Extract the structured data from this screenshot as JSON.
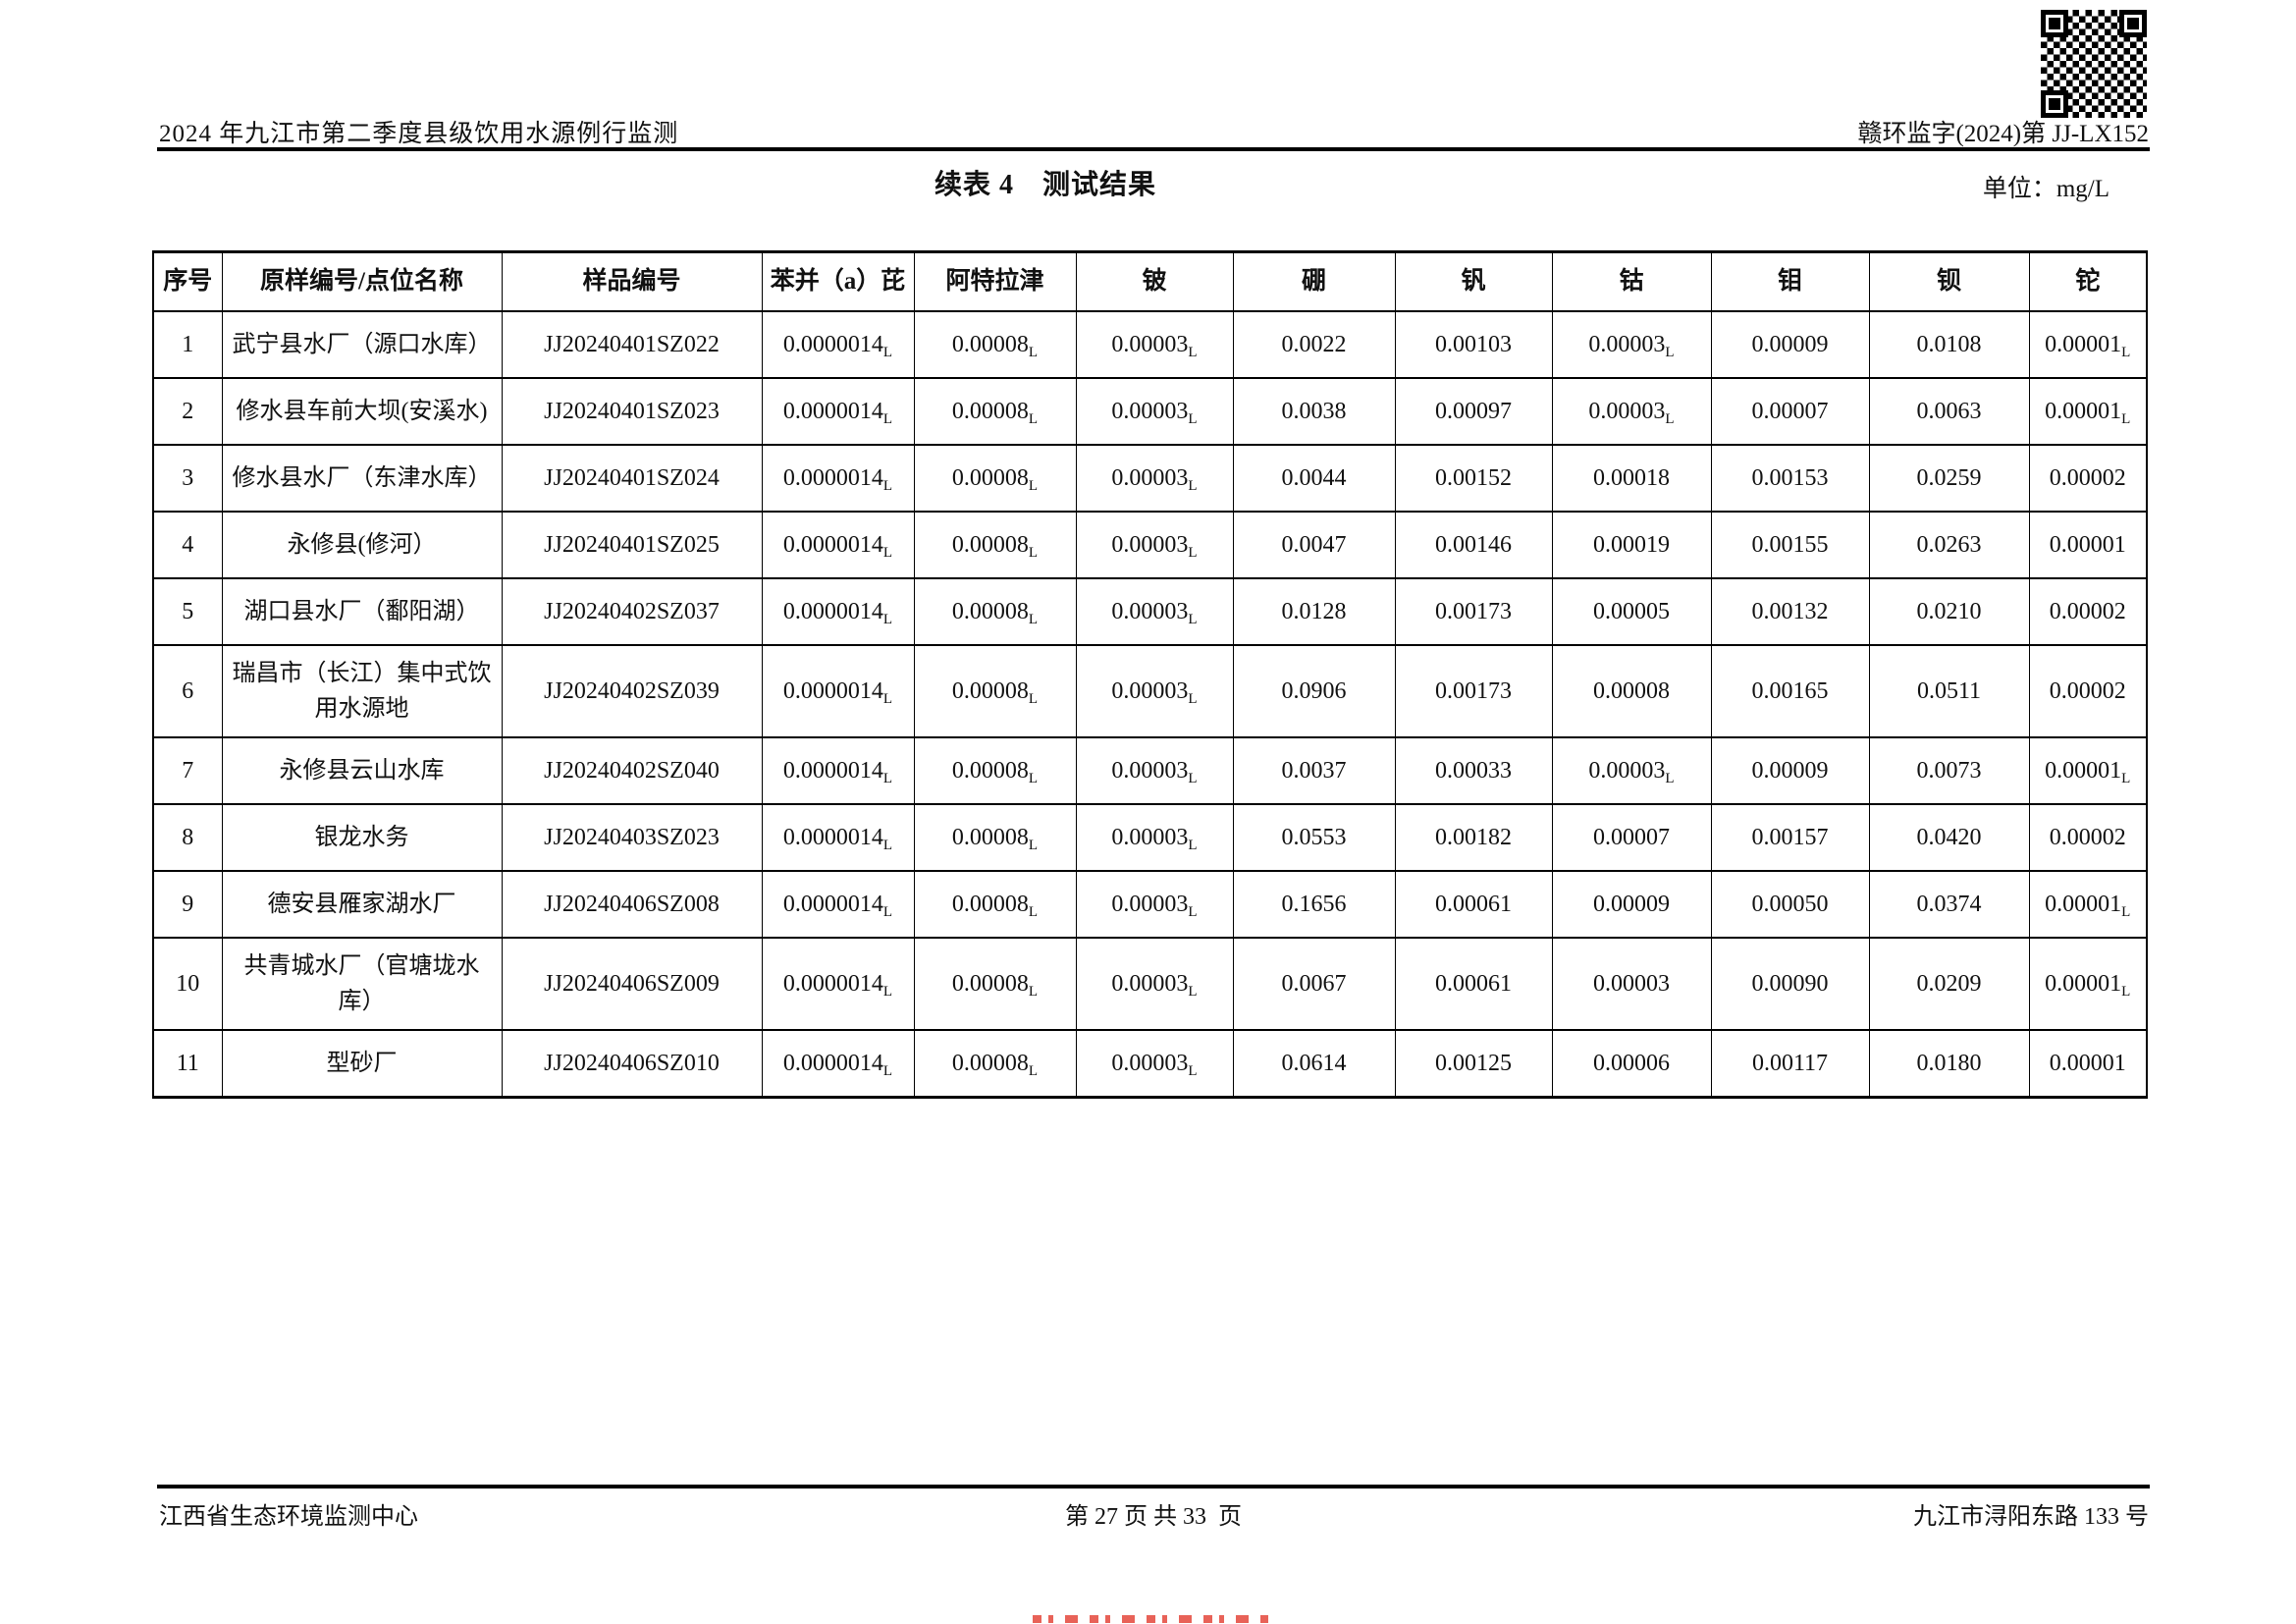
{
  "header": {
    "doc_title": "2024 年九江市第二季度县级饮用水源例行监测",
    "doc_number": "赣环监字(2024)第 JJ-LX152"
  },
  "title": "续表 4　测试结果",
  "unit_label": "单位：mg/L",
  "table": {
    "columns": [
      "序号",
      "原样编号/点位名称",
      "样品编号",
      "苯并（a）芘",
      "阿特拉津",
      "铍",
      "硼",
      "钒",
      "钴",
      "钼",
      "钡",
      "铊"
    ],
    "below_detection_suffix": "L",
    "rows": [
      [
        "1",
        "武宁县水厂（源口水库）",
        "JJ20240401SZ022",
        "0.0000014L",
        "0.00008L",
        "0.00003L",
        "0.0022",
        "0.00103",
        "0.00003L",
        "0.00009",
        "0.0108",
        "0.00001L"
      ],
      [
        "2",
        "修水县车前大坝(安溪水)",
        "JJ20240401SZ023",
        "0.0000014L",
        "0.00008L",
        "0.00003L",
        "0.0038",
        "0.00097",
        "0.00003L",
        "0.00007",
        "0.0063",
        "0.00001L"
      ],
      [
        "3",
        "修水县水厂（东津水库）",
        "JJ20240401SZ024",
        "0.0000014L",
        "0.00008L",
        "0.00003L",
        "0.0044",
        "0.00152",
        "0.00018",
        "0.00153",
        "0.0259",
        "0.00002"
      ],
      [
        "4",
        "永修县(修河）",
        "JJ20240401SZ025",
        "0.0000014L",
        "0.00008L",
        "0.00003L",
        "0.0047",
        "0.00146",
        "0.00019",
        "0.00155",
        "0.0263",
        "0.00001"
      ],
      [
        "5",
        "湖口县水厂（鄱阳湖）",
        "JJ20240402SZ037",
        "0.0000014L",
        "0.00008L",
        "0.00003L",
        "0.0128",
        "0.00173",
        "0.00005",
        "0.00132",
        "0.0210",
        "0.00002"
      ],
      [
        "6",
        "瑞昌市（长江）集中式饮用水源地",
        "JJ20240402SZ039",
        "0.0000014L",
        "0.00008L",
        "0.00003L",
        "0.0906",
        "0.00173",
        "0.00008",
        "0.00165",
        "0.0511",
        "0.00002"
      ],
      [
        "7",
        "永修县云山水库",
        "JJ20240402SZ040",
        "0.0000014L",
        "0.00008L",
        "0.00003L",
        "0.0037",
        "0.00033",
        "0.00003L",
        "0.00009",
        "0.0073",
        "0.00001L"
      ],
      [
        "8",
        "银龙水务",
        "JJ20240403SZ023",
        "0.0000014L",
        "0.00008L",
        "0.00003L",
        "0.0553",
        "0.00182",
        "0.00007",
        "0.00157",
        "0.0420",
        "0.00002"
      ],
      [
        "9",
        "德安县雁家湖水厂",
        "JJ20240406SZ008",
        "0.0000014L",
        "0.00008L",
        "0.00003L",
        "0.1656",
        "0.00061",
        "0.00009",
        "0.00050",
        "0.0374",
        "0.00001L"
      ],
      [
        "10",
        "共青城水厂（官塘垅水库）",
        "JJ20240406SZ009",
        "0.0000014L",
        "0.00008L",
        "0.00003L",
        "0.0067",
        "0.00061",
        "0.00003",
        "0.00090",
        "0.0209",
        "0.00001L"
      ],
      [
        "11",
        "型砂厂",
        "JJ20240406SZ010",
        "0.0000014L",
        "0.00008L",
        "0.00003L",
        "0.0614",
        "0.00125",
        "0.00006",
        "0.00117",
        "0.0180",
        "0.00001"
      ]
    ]
  },
  "footer": {
    "left": "江西省生态环境监测中心",
    "center": "第 27 页 共 33  页",
    "right": "九江市浔阳东路 133 号"
  }
}
